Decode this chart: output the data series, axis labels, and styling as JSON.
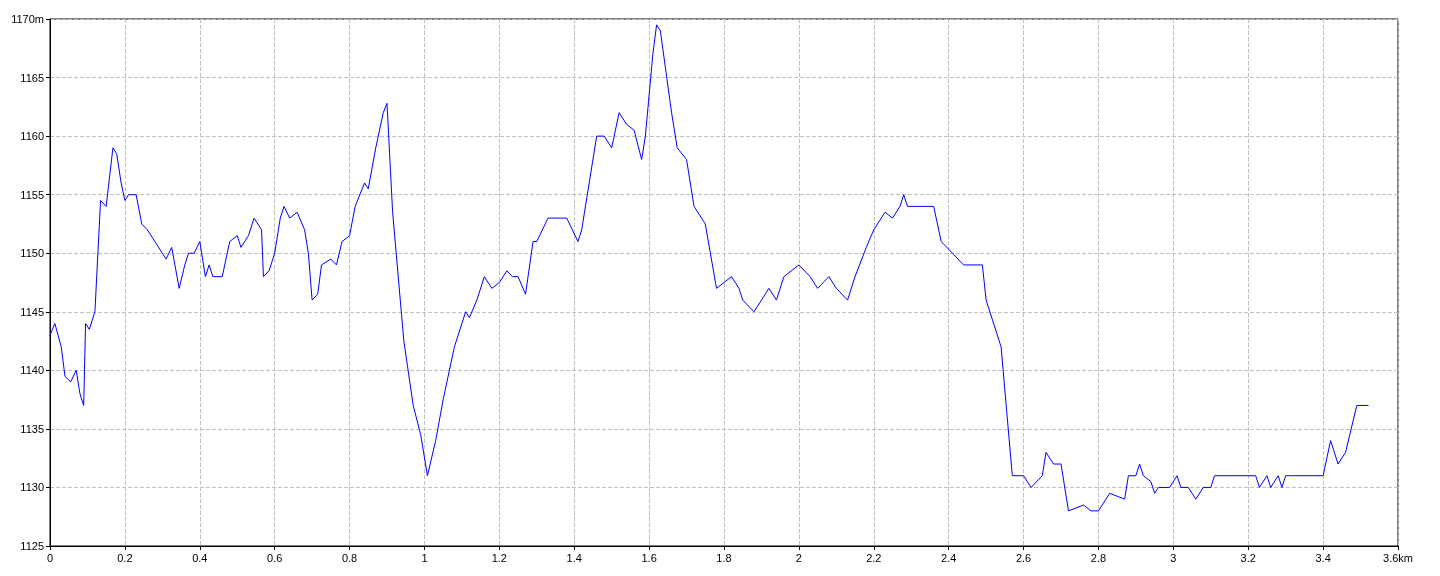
{
  "chart_data": {
    "type": "line",
    "x": [
      0,
      0.013,
      0.03,
      0.04,
      0.055,
      0.07,
      0.08,
      0.09,
      0.095,
      0.105,
      0.12,
      0.135,
      0.15,
      0.168,
      0.178,
      0.19,
      0.2,
      0.21,
      0.23,
      0.245,
      0.26,
      0.28,
      0.3,
      0.31,
      0.325,
      0.345,
      0.36,
      0.37,
      0.385,
      0.4,
      0.415,
      0.425,
      0.435,
      0.46,
      0.48,
      0.5,
      0.51,
      0.53,
      0.545,
      0.565,
      0.57,
      0.585,
      0.6,
      0.615,
      0.625,
      0.64,
      0.66,
      0.68,
      0.69,
      0.7,
      0.715,
      0.725,
      0.75,
      0.765,
      0.78,
      0.8,
      0.815,
      0.84,
      0.85,
      0.87,
      0.89,
      0.9,
      0.915,
      0.945,
      0.97,
      0.99,
      1.008,
      1.03,
      1.05,
      1.08,
      1.11,
      1.12,
      1.14,
      1.16,
      1.18,
      1.2,
      1.22,
      1.235,
      1.25,
      1.27,
      1.29,
      1.3,
      1.33,
      1.36,
      1.38,
      1.41,
      1.42,
      1.44,
      1.46,
      1.48,
      1.5,
      1.52,
      1.54,
      1.56,
      1.58,
      1.59,
      1.61,
      1.62,
      1.63,
      1.66,
      1.675,
      1.7,
      1.72,
      1.75,
      1.78,
      1.82,
      1.84,
      1.85,
      1.88,
      1.9,
      1.92,
      1.94,
      1.96,
      2.0,
      2.03,
      2.05,
      2.08,
      2.1,
      2.13,
      2.15,
      2.18,
      2.2,
      2.23,
      2.25,
      2.27,
      2.28,
      2.29,
      2.36,
      2.38,
      2.41,
      2.44,
      2.49,
      2.5,
      2.54,
      2.57,
      2.6,
      2.62,
      2.65,
      2.66,
      2.68,
      2.7,
      2.72,
      2.76,
      2.78,
      2.8,
      2.83,
      2.87,
      2.88,
      2.9,
      2.91,
      2.92,
      2.94,
      2.95,
      2.96,
      2.99,
      3.01,
      3.02,
      3.04,
      3.06,
      3.08,
      3.1,
      3.11,
      3.22,
      3.23,
      3.25,
      3.26,
      3.28,
      3.29,
      3.3,
      3.32,
      3.4,
      3.42,
      3.44,
      3.46,
      3.49,
      3.52
    ],
    "values": [
      1143,
      1144,
      1142,
      1139.5,
      1139,
      1140,
      1138,
      1137,
      1144,
      1143.5,
      1145,
      1154.5,
      1154,
      1159,
      1158.5,
      1156,
      1154.5,
      1155,
      1155,
      1152.5,
      1152,
      1151,
      1150,
      1149.5,
      1150.5,
      1147,
      1149,
      1150,
      1150,
      1151,
      1148,
      1149,
      1148,
      1148,
      1151,
      1151.5,
      1150.5,
      1151.5,
      1153,
      1152,
      1148,
      1148.5,
      1150,
      1153,
      1154,
      1153,
      1153.5,
      1152,
      1150,
      1146,
      1146.5,
      1149,
      1149.5,
      1149,
      1151,
      1151.5,
      1154,
      1156,
      1155.5,
      1159,
      1162,
      1162.8,
      1153.5,
      1142.5,
      1137,
      1134.5,
      1131,
      1134,
      1137.5,
      1142,
      1145,
      1144.5,
      1146,
      1148,
      1147,
      1147.5,
      1148.5,
      1148,
      1148,
      1146.5,
      1151,
      1151,
      1153,
      1153,
      1153,
      1151,
      1152,
      1156,
      1160,
      1160,
      1159,
      1162,
      1161,
      1160.5,
      1158,
      1160,
      1167,
      1169.5,
      1169,
      1162,
      1159,
      1158,
      1154,
      1152.5,
      1147,
      1148,
      1147,
      1146,
      1145,
      1146,
      1147,
      1146,
      1148,
      1149,
      1148,
      1147,
      1148,
      1147,
      1146,
      1148,
      1150.5,
      1152,
      1153.5,
      1153,
      1154,
      1155,
      1154,
      1154,
      1151,
      1150,
      1149,
      1149,
      1146,
      1142,
      1131,
      1131,
      1130,
      1131,
      1133,
      1132,
      1132,
      1128,
      1128.5,
      1128,
      1128,
      1129.5,
      1129,
      1131,
      1131,
      1132,
      1131,
      1130.5,
      1129.5,
      1130,
      1130,
      1131,
      1130,
      1130,
      1129,
      1130,
      1130,
      1131,
      1131,
      1130,
      1131,
      1130,
      1131,
      1130,
      1131,
      1131,
      1131,
      1134,
      1132,
      1133,
      1137,
      1137
    ],
    "color": "#0000ff",
    "marker": "none",
    "line_style": "solid",
    "grid": true,
    "xlim": [
      0,
      3.6
    ],
    "xticks": [
      0,
      0.2,
      0.4,
      0.6,
      0.8,
      1,
      1.2,
      1.4,
      1.6,
      1.8,
      2,
      2.2,
      2.4,
      2.6,
      2.8,
      3,
      3.2,
      3.4,
      {
        "value": 3.6,
        "label": "3.6km"
      }
    ],
    "ylim": [
      1125,
      1170
    ],
    "yticks": [
      1125,
      1130,
      1135,
      1140,
      1145,
      1150,
      1155,
      1160,
      1165,
      {
        "value": 1170,
        "label": "1170m"
      }
    ]
  }
}
